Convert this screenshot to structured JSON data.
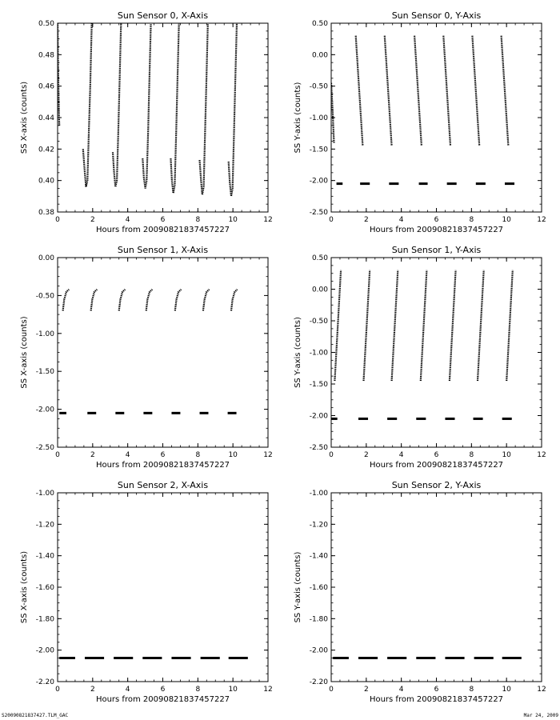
{
  "footer": {
    "left": "S20090821837427.TLM_GAC",
    "right": "Mar 24, 2009"
  },
  "chart_data": [
    {
      "type": "scatter",
      "title": "Sun Sensor 0, X-Axis",
      "xlabel": "Hours from 20090821837457227",
      "ylabel": "SS X-axis (counts)",
      "xlim": [
        0,
        12
      ],
      "ylim": [
        0.38,
        0.5
      ],
      "xticks": [
        "0",
        "2",
        "4",
        "6",
        "8",
        "10",
        "12"
      ],
      "yticks": [
        "0.38",
        "0.40",
        "0.42",
        "0.44",
        "0.46",
        "0.48",
        "0.50"
      ],
      "series": [
        {
          "kind": "curve",
          "segments": [
            [
              [
                0.0,
                0.5
              ],
              [
                0.02,
                0.48
              ],
              [
                0.05,
                0.46
              ],
              [
                0.08,
                0.44
              ],
              [
                0.1,
                0.435
              ]
            ],
            [
              [
                1.45,
                0.42
              ],
              [
                1.55,
                0.405
              ],
              [
                1.62,
                0.396
              ],
              [
                1.7,
                0.4
              ],
              [
                1.78,
                0.43
              ],
              [
                1.86,
                0.46
              ],
              [
                1.95,
                0.5
              ]
            ],
            [
              [
                3.15,
                0.418
              ],
              [
                3.22,
                0.405
              ],
              [
                3.3,
                0.396
              ],
              [
                3.38,
                0.4
              ],
              [
                3.46,
                0.43
              ],
              [
                3.54,
                0.465
              ],
              [
                3.62,
                0.5
              ]
            ],
            [
              [
                4.85,
                0.414
              ],
              [
                4.92,
                0.402
              ],
              [
                5.0,
                0.395
              ],
              [
                5.08,
                0.4
              ],
              [
                5.16,
                0.43
              ],
              [
                5.24,
                0.465
              ],
              [
                5.32,
                0.5
              ]
            ],
            [
              [
                6.45,
                0.414
              ],
              [
                6.52,
                0.4
              ],
              [
                6.6,
                0.392
              ],
              [
                6.68,
                0.397
              ],
              [
                6.76,
                0.43
              ],
              [
                6.84,
                0.465
              ],
              [
                6.92,
                0.5
              ]
            ],
            [
              [
                8.1,
                0.413
              ],
              [
                8.18,
                0.4
              ],
              [
                8.25,
                0.391
              ],
              [
                8.33,
                0.396
              ],
              [
                8.41,
                0.43
              ],
              [
                8.49,
                0.465
              ],
              [
                8.57,
                0.5
              ]
            ],
            [
              [
                9.75,
                0.412
              ],
              [
                9.82,
                0.399
              ],
              [
                9.9,
                0.39
              ],
              [
                9.98,
                0.395
              ],
              [
                10.06,
                0.43
              ],
              [
                10.14,
                0.465
              ],
              [
                10.22,
                0.5
              ]
            ]
          ]
        }
      ]
    },
    {
      "type": "scatter",
      "title": "Sun Sensor 0, Y-Axis",
      "xlabel": "Hours from 20090821837457227",
      "ylabel": "SS Y-axis (counts)",
      "xlim": [
        0,
        12
      ],
      "ylim": [
        -2.5,
        0.5
      ],
      "xticks": [
        "0",
        "2",
        "4",
        "6",
        "8",
        "10",
        "12"
      ],
      "yticks": [
        "-2.50",
        "-2.00",
        "-1.50",
        "-1.00",
        "-0.50",
        "0.00",
        "0.50"
      ],
      "series": [
        {
          "kind": "curve",
          "segments": [
            [
              [
                0.0,
                -0.45
              ],
              [
                0.08,
                -0.9
              ],
              [
                0.16,
                -1.4
              ]
            ],
            [
              [
                1.4,
                0.3
              ],
              [
                1.8,
                -1.45
              ]
            ],
            [
              [
                3.05,
                0.3
              ],
              [
                3.45,
                -1.45
              ]
            ],
            [
              [
                4.75,
                0.3
              ],
              [
                5.15,
                -1.45
              ]
            ],
            [
              [
                6.4,
                0.3
              ],
              [
                6.8,
                -1.45
              ]
            ],
            [
              [
                8.05,
                0.3
              ],
              [
                8.45,
                -1.45
              ]
            ],
            [
              [
                9.7,
                0.3
              ],
              [
                10.1,
                -1.45
              ]
            ]
          ]
        },
        {
          "kind": "dash",
          "y": -2.05,
          "x": [
            [
              0.3,
              0.65
            ],
            [
              1.65,
              2.2
            ],
            [
              3.3,
              3.85
            ],
            [
              5.0,
              5.5
            ],
            [
              6.6,
              7.15
            ],
            [
              8.25,
              8.8
            ],
            [
              9.9,
              10.45
            ]
          ]
        }
      ]
    },
    {
      "type": "scatter",
      "title": "Sun Sensor 1, X-Axis",
      "xlabel": "Hours from 20090821837457227",
      "ylabel": "SS X-axis (counts)",
      "xlim": [
        0,
        12
      ],
      "ylim": [
        -2.5,
        0.0
      ],
      "xticks": [
        "0",
        "2",
        "4",
        "6",
        "8",
        "10",
        "12"
      ],
      "yticks": [
        "-2.50",
        "-2.00",
        "-1.50",
        "-1.00",
        "-0.50",
        "0.00"
      ],
      "series": [
        {
          "kind": "curve",
          "segments": [
            [
              [
                0.3,
                -0.7
              ],
              [
                0.38,
                -0.55
              ],
              [
                0.5,
                -0.45
              ],
              [
                0.65,
                -0.42
              ]
            ],
            [
              [
                1.9,
                -0.7
              ],
              [
                1.98,
                -0.55
              ],
              [
                2.1,
                -0.45
              ],
              [
                2.25,
                -0.42
              ]
            ],
            [
              [
                3.5,
                -0.7
              ],
              [
                3.58,
                -0.55
              ],
              [
                3.7,
                -0.45
              ],
              [
                3.85,
                -0.42
              ]
            ],
            [
              [
                5.05,
                -0.7
              ],
              [
                5.13,
                -0.55
              ],
              [
                5.25,
                -0.45
              ],
              [
                5.4,
                -0.42
              ]
            ],
            [
              [
                6.7,
                -0.7
              ],
              [
                6.78,
                -0.55
              ],
              [
                6.9,
                -0.45
              ],
              [
                7.05,
                -0.42
              ]
            ],
            [
              [
                8.3,
                -0.7
              ],
              [
                8.38,
                -0.55
              ],
              [
                8.5,
                -0.45
              ],
              [
                8.65,
                -0.42
              ]
            ],
            [
              [
                9.9,
                -0.7
              ],
              [
                9.98,
                -0.55
              ],
              [
                10.1,
                -0.45
              ],
              [
                10.25,
                -0.42
              ]
            ]
          ]
        },
        {
          "kind": "dash",
          "y": -2.05,
          "x": [
            [
              0.1,
              0.5
            ],
            [
              1.7,
              2.2
            ],
            [
              3.3,
              3.8
            ],
            [
              4.9,
              5.4
            ],
            [
              6.5,
              7.0
            ],
            [
              8.1,
              8.6
            ],
            [
              9.7,
              10.2
            ]
          ]
        }
      ]
    },
    {
      "type": "scatter",
      "title": "Sun Sensor 1, Y-Axis",
      "xlabel": "Hours from 20090821837457227",
      "ylabel": "SS Y-axis (counts)",
      "xlim": [
        0,
        12
      ],
      "ylim": [
        -2.5,
        0.5
      ],
      "xticks": [
        "0",
        "2",
        "4",
        "6",
        "8",
        "10",
        "12"
      ],
      "yticks": [
        "-2.50",
        "-2.00",
        "-1.50",
        "-1.00",
        "-0.50",
        "0.00",
        "0.50"
      ],
      "series": [
        {
          "kind": "curve",
          "segments": [
            [
              [
                0.2,
                -1.45
              ],
              [
                0.55,
                0.3
              ]
            ],
            [
              [
                1.85,
                -1.45
              ],
              [
                2.2,
                0.3
              ]
            ],
            [
              [
                3.45,
                -1.45
              ],
              [
                3.8,
                0.3
              ]
            ],
            [
              [
                5.1,
                -1.45
              ],
              [
                5.45,
                0.3
              ]
            ],
            [
              [
                6.75,
                -1.45
              ],
              [
                7.1,
                0.3
              ]
            ],
            [
              [
                8.35,
                -1.45
              ],
              [
                8.7,
                0.3
              ]
            ],
            [
              [
                10.0,
                -1.45
              ],
              [
                10.35,
                0.3
              ]
            ]
          ]
        },
        {
          "kind": "dash",
          "y": -2.05,
          "x": [
            [
              0.0,
              0.35
            ],
            [
              1.55,
              2.1
            ],
            [
              3.2,
              3.75
            ],
            [
              4.85,
              5.4
            ],
            [
              6.5,
              7.05
            ],
            [
              8.1,
              8.65
            ],
            [
              9.75,
              10.3
            ]
          ]
        }
      ]
    },
    {
      "type": "scatter",
      "title": "Sun Sensor 2, X-Axis",
      "xlabel": "Hours from 20090821837457227",
      "ylabel": "SS X-axis (counts)",
      "xlim": [
        0,
        12
      ],
      "ylim": [
        -2.2,
        -1.0
      ],
      "xticks": [
        "0",
        "2",
        "4",
        "6",
        "8",
        "10",
        "12"
      ],
      "yticks": [
        "-2.20",
        "-2.00",
        "-1.80",
        "-1.60",
        "-1.40",
        "-1.20",
        "-1.00"
      ],
      "series": [
        {
          "kind": "dash",
          "y": -2.05,
          "x": [
            [
              0.1,
              1.0
            ],
            [
              1.55,
              2.65
            ],
            [
              3.2,
              4.3
            ],
            [
              4.85,
              5.95
            ],
            [
              6.5,
              7.6
            ],
            [
              8.15,
              9.25
            ],
            [
              9.75,
              10.85
            ]
          ]
        }
      ]
    },
    {
      "type": "scatter",
      "title": "Sun Sensor 2, Y-Axis",
      "xlabel": "Hours from 20090821837457227",
      "ylabel": "SS Y-axis (counts)",
      "xlim": [
        0,
        12
      ],
      "ylim": [
        -2.2,
        -1.0
      ],
      "xticks": [
        "0",
        "2",
        "4",
        "6",
        "8",
        "10",
        "12"
      ],
      "yticks": [
        "-2.20",
        "-2.00",
        "-1.80",
        "-1.60",
        "-1.40",
        "-1.20",
        "-1.00"
      ],
      "series": [
        {
          "kind": "dash",
          "y": -2.05,
          "x": [
            [
              0.1,
              1.0
            ],
            [
              1.55,
              2.65
            ],
            [
              3.2,
              4.3
            ],
            [
              4.85,
              5.95
            ],
            [
              6.5,
              7.6
            ],
            [
              8.15,
              9.25
            ],
            [
              9.75,
              10.85
            ]
          ]
        }
      ]
    }
  ]
}
